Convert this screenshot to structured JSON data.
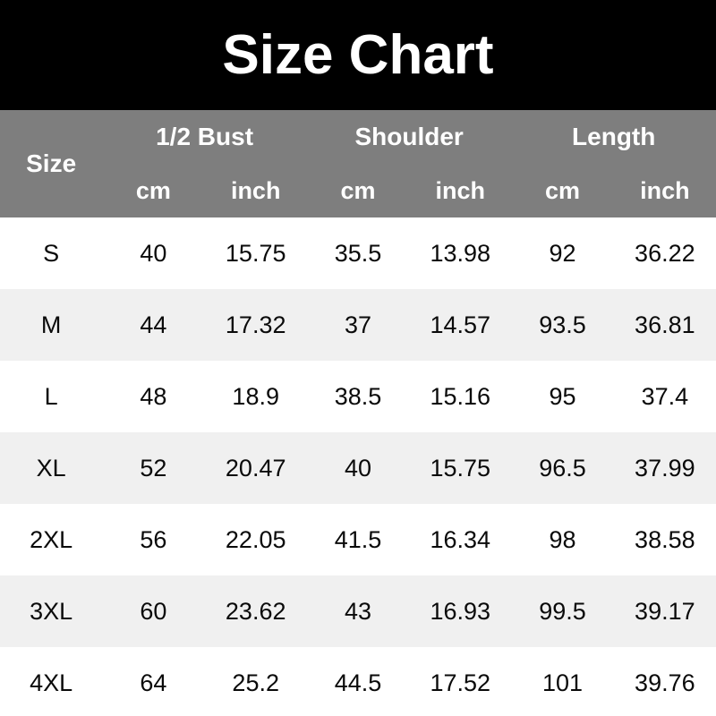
{
  "title": "Size Chart",
  "table": {
    "corner_label": "Size",
    "groups": [
      {
        "label": "1/2 Bust"
      },
      {
        "label": "Shoulder"
      },
      {
        "label": "Length"
      }
    ],
    "unit_headers": [
      "cm",
      "inch",
      "cm",
      "inch",
      "cm",
      "inch"
    ],
    "rows": [
      {
        "size": "S",
        "values": [
          "40",
          "15.75",
          "35.5",
          "13.98",
          "92",
          "36.22"
        ]
      },
      {
        "size": "M",
        "values": [
          "44",
          "17.32",
          "37",
          "14.57",
          "93.5",
          "36.81"
        ]
      },
      {
        "size": "L",
        "values": [
          "48",
          "18.9",
          "38.5",
          "15.16",
          "95",
          "37.4"
        ]
      },
      {
        "size": "XL",
        "values": [
          "52",
          "20.47",
          "40",
          "15.75",
          "96.5",
          "37.99"
        ]
      },
      {
        "size": "2XL",
        "values": [
          "56",
          "22.05",
          "41.5",
          "16.34",
          "98",
          "38.58"
        ]
      },
      {
        "size": "3XL",
        "values": [
          "60",
          "23.62",
          "43",
          "16.93",
          "99.5",
          "39.17"
        ]
      },
      {
        "size": "4XL",
        "values": [
          "64",
          "25.2",
          "44.5",
          "17.52",
          "101",
          "39.76"
        ]
      }
    ]
  },
  "colors": {
    "banner_bg": "#000000",
    "banner_text": "#ffffff",
    "header_bg": "#7e7e7e",
    "header_text": "#ffffff",
    "row_bg": "#ffffff",
    "row_alt_bg": "#f0f0f0",
    "data_text": "#0a0a0a"
  },
  "chart_data": {
    "type": "table",
    "title": "Size Chart",
    "columns": [
      "Size",
      "1/2 Bust cm",
      "1/2 Bust inch",
      "Shoulder cm",
      "Shoulder inch",
      "Length cm",
      "Length inch"
    ],
    "rows": [
      [
        "S",
        40,
        15.75,
        35.5,
        13.98,
        92,
        36.22
      ],
      [
        "M",
        44,
        17.32,
        37,
        14.57,
        93.5,
        36.81
      ],
      [
        "L",
        48,
        18.9,
        38.5,
        15.16,
        95,
        37.4
      ],
      [
        "XL",
        52,
        20.47,
        40,
        15.75,
        96.5,
        37.99
      ],
      [
        "2XL",
        56,
        22.05,
        41.5,
        16.34,
        98,
        38.58
      ],
      [
        "3XL",
        60,
        23.62,
        43,
        16.93,
        99.5,
        39.17
      ],
      [
        "4XL",
        64,
        25.2,
        44.5,
        17.52,
        101,
        39.76
      ]
    ],
    "layout": {
      "header_rows": 2,
      "alternating_row_shading": true,
      "grid": false
    }
  }
}
